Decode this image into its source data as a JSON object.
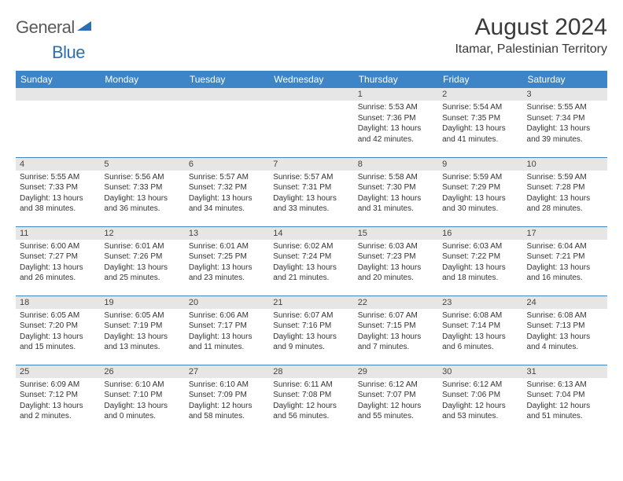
{
  "logo": {
    "main": "General",
    "blue": "Blue"
  },
  "header": {
    "month": "August 2024",
    "location": "Itamar, Palestinian Territory"
  },
  "colors": {
    "header_bg": "#3d85c6",
    "header_text": "#ffffff",
    "daynum_bg": "#e6e6e6",
    "border": "#3d85c6",
    "logo_gray": "#5a5a5a",
    "logo_blue": "#2a6fb5"
  },
  "weekdays": [
    "Sunday",
    "Monday",
    "Tuesday",
    "Wednesday",
    "Thursday",
    "Friday",
    "Saturday"
  ],
  "weeks": [
    [
      {
        "n": "",
        "sr": "",
        "ss": "",
        "dl": ""
      },
      {
        "n": "",
        "sr": "",
        "ss": "",
        "dl": ""
      },
      {
        "n": "",
        "sr": "",
        "ss": "",
        "dl": ""
      },
      {
        "n": "",
        "sr": "",
        "ss": "",
        "dl": ""
      },
      {
        "n": "1",
        "sr": "Sunrise: 5:53 AM",
        "ss": "Sunset: 7:36 PM",
        "dl": "Daylight: 13 hours and 42 minutes."
      },
      {
        "n": "2",
        "sr": "Sunrise: 5:54 AM",
        "ss": "Sunset: 7:35 PM",
        "dl": "Daylight: 13 hours and 41 minutes."
      },
      {
        "n": "3",
        "sr": "Sunrise: 5:55 AM",
        "ss": "Sunset: 7:34 PM",
        "dl": "Daylight: 13 hours and 39 minutes."
      }
    ],
    [
      {
        "n": "4",
        "sr": "Sunrise: 5:55 AM",
        "ss": "Sunset: 7:33 PM",
        "dl": "Daylight: 13 hours and 38 minutes."
      },
      {
        "n": "5",
        "sr": "Sunrise: 5:56 AM",
        "ss": "Sunset: 7:33 PM",
        "dl": "Daylight: 13 hours and 36 minutes."
      },
      {
        "n": "6",
        "sr": "Sunrise: 5:57 AM",
        "ss": "Sunset: 7:32 PM",
        "dl": "Daylight: 13 hours and 34 minutes."
      },
      {
        "n": "7",
        "sr": "Sunrise: 5:57 AM",
        "ss": "Sunset: 7:31 PM",
        "dl": "Daylight: 13 hours and 33 minutes."
      },
      {
        "n": "8",
        "sr": "Sunrise: 5:58 AM",
        "ss": "Sunset: 7:30 PM",
        "dl": "Daylight: 13 hours and 31 minutes."
      },
      {
        "n": "9",
        "sr": "Sunrise: 5:59 AM",
        "ss": "Sunset: 7:29 PM",
        "dl": "Daylight: 13 hours and 30 minutes."
      },
      {
        "n": "10",
        "sr": "Sunrise: 5:59 AM",
        "ss": "Sunset: 7:28 PM",
        "dl": "Daylight: 13 hours and 28 minutes."
      }
    ],
    [
      {
        "n": "11",
        "sr": "Sunrise: 6:00 AM",
        "ss": "Sunset: 7:27 PM",
        "dl": "Daylight: 13 hours and 26 minutes."
      },
      {
        "n": "12",
        "sr": "Sunrise: 6:01 AM",
        "ss": "Sunset: 7:26 PM",
        "dl": "Daylight: 13 hours and 25 minutes."
      },
      {
        "n": "13",
        "sr": "Sunrise: 6:01 AM",
        "ss": "Sunset: 7:25 PM",
        "dl": "Daylight: 13 hours and 23 minutes."
      },
      {
        "n": "14",
        "sr": "Sunrise: 6:02 AM",
        "ss": "Sunset: 7:24 PM",
        "dl": "Daylight: 13 hours and 21 minutes."
      },
      {
        "n": "15",
        "sr": "Sunrise: 6:03 AM",
        "ss": "Sunset: 7:23 PM",
        "dl": "Daylight: 13 hours and 20 minutes."
      },
      {
        "n": "16",
        "sr": "Sunrise: 6:03 AM",
        "ss": "Sunset: 7:22 PM",
        "dl": "Daylight: 13 hours and 18 minutes."
      },
      {
        "n": "17",
        "sr": "Sunrise: 6:04 AM",
        "ss": "Sunset: 7:21 PM",
        "dl": "Daylight: 13 hours and 16 minutes."
      }
    ],
    [
      {
        "n": "18",
        "sr": "Sunrise: 6:05 AM",
        "ss": "Sunset: 7:20 PM",
        "dl": "Daylight: 13 hours and 15 minutes."
      },
      {
        "n": "19",
        "sr": "Sunrise: 6:05 AM",
        "ss": "Sunset: 7:19 PM",
        "dl": "Daylight: 13 hours and 13 minutes."
      },
      {
        "n": "20",
        "sr": "Sunrise: 6:06 AM",
        "ss": "Sunset: 7:17 PM",
        "dl": "Daylight: 13 hours and 11 minutes."
      },
      {
        "n": "21",
        "sr": "Sunrise: 6:07 AM",
        "ss": "Sunset: 7:16 PM",
        "dl": "Daylight: 13 hours and 9 minutes."
      },
      {
        "n": "22",
        "sr": "Sunrise: 6:07 AM",
        "ss": "Sunset: 7:15 PM",
        "dl": "Daylight: 13 hours and 7 minutes."
      },
      {
        "n": "23",
        "sr": "Sunrise: 6:08 AM",
        "ss": "Sunset: 7:14 PM",
        "dl": "Daylight: 13 hours and 6 minutes."
      },
      {
        "n": "24",
        "sr": "Sunrise: 6:08 AM",
        "ss": "Sunset: 7:13 PM",
        "dl": "Daylight: 13 hours and 4 minutes."
      }
    ],
    [
      {
        "n": "25",
        "sr": "Sunrise: 6:09 AM",
        "ss": "Sunset: 7:12 PM",
        "dl": "Daylight: 13 hours and 2 minutes."
      },
      {
        "n": "26",
        "sr": "Sunrise: 6:10 AM",
        "ss": "Sunset: 7:10 PM",
        "dl": "Daylight: 13 hours and 0 minutes."
      },
      {
        "n": "27",
        "sr": "Sunrise: 6:10 AM",
        "ss": "Sunset: 7:09 PM",
        "dl": "Daylight: 12 hours and 58 minutes."
      },
      {
        "n": "28",
        "sr": "Sunrise: 6:11 AM",
        "ss": "Sunset: 7:08 PM",
        "dl": "Daylight: 12 hours and 56 minutes."
      },
      {
        "n": "29",
        "sr": "Sunrise: 6:12 AM",
        "ss": "Sunset: 7:07 PM",
        "dl": "Daylight: 12 hours and 55 minutes."
      },
      {
        "n": "30",
        "sr": "Sunrise: 6:12 AM",
        "ss": "Sunset: 7:06 PM",
        "dl": "Daylight: 12 hours and 53 minutes."
      },
      {
        "n": "31",
        "sr": "Sunrise: 6:13 AM",
        "ss": "Sunset: 7:04 PM",
        "dl": "Daylight: 12 hours and 51 minutes."
      }
    ]
  ]
}
